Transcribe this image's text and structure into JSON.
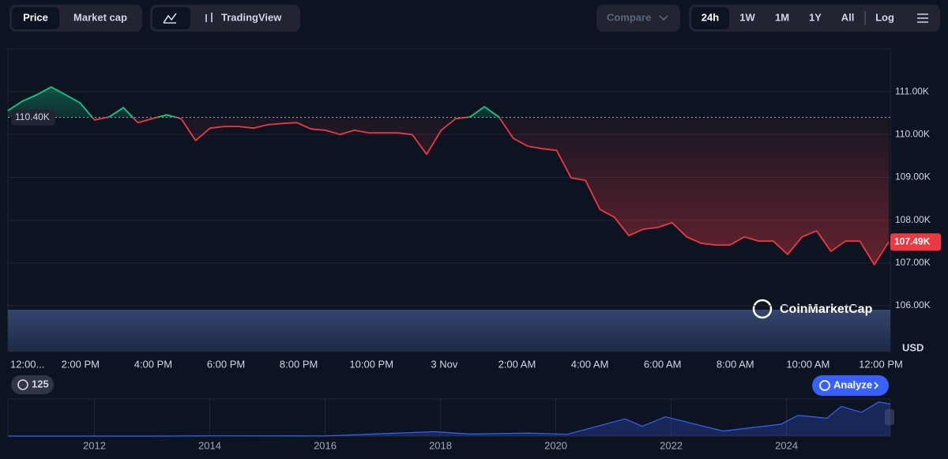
{
  "toolbar": {
    "view_tabs": [
      "Price",
      "Market cap"
    ],
    "chart_tabs": [
      "TradingView"
    ],
    "compare": "Compare",
    "ranges": [
      "24h",
      "1W",
      "1M",
      "1Y",
      "All"
    ],
    "log": "Log"
  },
  "chart_data": {
    "type": "line",
    "currency": "USD",
    "watermark": "CoinMarketCap",
    "x_labels": [
      "12:00...",
      "2:00 PM",
      "4:00 PM",
      "6:00 PM",
      "8:00 PM",
      "10:00 PM",
      "3 Nov",
      "2:00 AM",
      "4:00 AM",
      "6:00 AM",
      "8:00 AM",
      "10:00 AM",
      "12:00 PM"
    ],
    "series": [
      {
        "color_up": "#16c784",
        "color_down": "#ea3943",
        "values": [
          110560,
          110780,
          110930,
          111110,
          110930,
          110740,
          110340,
          110410,
          110630,
          110280,
          110370,
          110460,
          110370,
          109860,
          110150,
          110190,
          110190,
          110150,
          110230,
          110260,
          110280,
          110130,
          110100,
          110000,
          110100,
          110040,
          110040,
          110040,
          110000,
          109540,
          110100,
          110370,
          110410,
          110650,
          110410,
          109910,
          109730,
          109670,
          109630,
          108990,
          108930,
          108250,
          108070,
          107640,
          107790,
          107830,
          107940,
          107610,
          107460,
          107420,
          107420,
          107610,
          107510,
          107510,
          107200,
          107610,
          107750,
          107270,
          107510,
          107510,
          106960,
          107490
        ]
      }
    ],
    "ylim": [
      104930,
      112000
    ],
    "yticks": [
      {
        "value": 111000,
        "label": "111.00K"
      },
      {
        "value": 110000,
        "label": "110.00K"
      },
      {
        "value": 109000,
        "label": "109.00K"
      },
      {
        "value": 108000,
        "label": "108.00K"
      },
      {
        "value": 107000,
        "label": "107.00K"
      },
      {
        "value": 106000,
        "label": "106.00K"
      }
    ],
    "grid": true,
    "baseline": {
      "value": 110400,
      "label": "110.40K"
    },
    "current": {
      "value": 107490,
      "label": "107.49K"
    }
  },
  "badge": "125",
  "analyze": "Analyze",
  "navigator": {
    "type": "area",
    "color": "#3861fb",
    "x": [
      2010.5,
      2013,
      2014,
      2016,
      2017.9,
      2018.5,
      2019.5,
      2020.2,
      2021.2,
      2021.5,
      2021.9,
      2022.9,
      2023.9,
      2024.2,
      2024.7,
      2024.95,
      2025.3,
      2025.6,
      2025.8
    ],
    "values": [
      0,
      100,
      700,
      400,
      15000,
      7000,
      10000,
      6000,
      58000,
      33000,
      65000,
      17000,
      40000,
      70000,
      60000,
      100000,
      80000,
      115000,
      108000
    ],
    "xlim": [
      2010.5,
      2025.8
    ],
    "ylim": [
      0,
      125000
    ],
    "xticks": [
      2012,
      2014,
      2016,
      2018,
      2020,
      2022,
      2024
    ]
  }
}
